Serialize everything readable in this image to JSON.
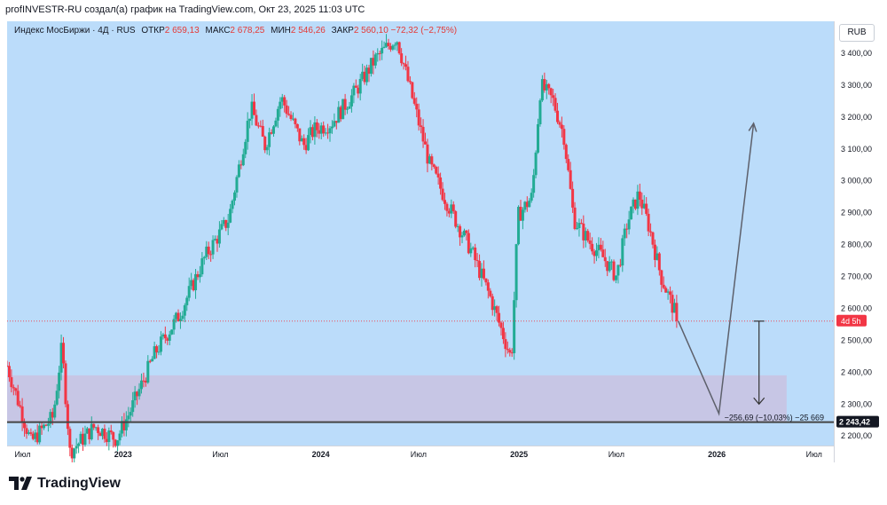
{
  "attribution": "profINVESTR-RU создал(а) график на TradingView.com, Окт 23, 2025 11:03 UTC",
  "legend": {
    "title": "Индекс МосБиржи · 4Д · RUS",
    "open_label": "ОТКР",
    "open": "2 659,13",
    "high_label": "МАКС",
    "high": "2 678,25",
    "low_label": "МИН",
    "low": "2 546,26",
    "close_label": "ЗАКР",
    "close": "2 560,10",
    "change": "−72,32 (−2,75%)"
  },
  "currency_button": "RUB",
  "countdown_label": "4d 5h",
  "support_label": "2 243,42",
  "measure_label": "−256,69 (−10,03%) −25 669",
  "footer_logo": "TradingView",
  "colors": {
    "background": "#bbdcfa",
    "up": "#22ab94",
    "down": "#f23645",
    "zone": "#c9c2e0",
    "support_line": "#444444"
  },
  "chart_data": {
    "type": "candlestick",
    "ylim": [
      2170,
      3500
    ],
    "y_ticks": [
      "2 200,00",
      "2 300,00",
      "2 400,00",
      "2 500,00",
      "2 600,00",
      "2 700,00",
      "2 800,00",
      "2 900,00",
      "3 000,00",
      "3 100,00",
      "3 200,00",
      "3 300,00",
      "3 400,00"
    ],
    "y_tick_values": [
      2200,
      2300,
      2400,
      2500,
      2600,
      2700,
      2800,
      2900,
      3000,
      3100,
      3200,
      3300,
      3400
    ],
    "x_ticks": [
      "Июл",
      "2023",
      "Июл",
      "2024",
      "Июл",
      "2025",
      "Июл",
      "2026",
      "Июл"
    ],
    "x_tick_dates": [
      "2022-07-01",
      "2023-01-01",
      "2023-07-01",
      "2024-01-01",
      "2024-07-01",
      "2025-01-01",
      "2025-07-01",
      "2026-01-01",
      "2026-07-01"
    ],
    "price_anchors": [
      [
        "2022-06-01",
        2420
      ],
      [
        "2022-07-15",
        2180
      ],
      [
        "2022-08-25",
        2260
      ],
      [
        "2022-09-10",
        2480
      ],
      [
        "2022-09-25",
        2150
      ],
      [
        "2022-11-10",
        2230
      ],
      [
        "2022-12-20",
        2190
      ],
      [
        "2023-01-15",
        2280
      ],
      [
        "2023-03-01",
        2460
      ],
      [
        "2023-04-15",
        2580
      ],
      [
        "2023-06-01",
        2760
      ],
      [
        "2023-07-15",
        2880
      ],
      [
        "2023-08-25",
        3230
      ],
      [
        "2023-09-20",
        3110
      ],
      [
        "2023-10-20",
        3260
      ],
      [
        "2023-11-30",
        3110
      ],
      [
        "2023-12-20",
        3160
      ],
      [
        "2024-01-20",
        3180
      ],
      [
        "2024-03-05",
        3280
      ],
      [
        "2024-04-10",
        3380
      ],
      [
        "2024-05-20",
        3450
      ],
      [
        "2024-06-15",
        3280
      ],
      [
        "2024-07-20",
        3050
      ],
      [
        "2024-08-30",
        2900
      ],
      [
        "2024-10-05",
        2780
      ],
      [
        "2024-11-10",
        2630
      ],
      [
        "2024-12-18",
        2440
      ],
      [
        "2024-12-30",
        2890
      ],
      [
        "2025-01-25",
        2950
      ],
      [
        "2025-02-10",
        3300
      ],
      [
        "2025-03-05",
        3250
      ],
      [
        "2025-03-25",
        3140
      ],
      [
        "2025-04-12",
        2880
      ],
      [
        "2025-05-10",
        2810
      ],
      [
        "2025-06-05",
        2760
      ],
      [
        "2025-06-30",
        2700
      ],
      [
        "2025-07-20",
        2870
      ],
      [
        "2025-08-10",
        2960
      ],
      [
        "2025-08-30",
        2850
      ],
      [
        "2025-09-20",
        2700
      ],
      [
        "2025-10-22",
        2560
      ]
    ],
    "last_close": 2560.1,
    "support_level": 2243.42,
    "zone": {
      "from": "2022-05-20",
      "to": "2026-05-10",
      "low": 2243.42,
      "high": 2390
    },
    "projection": [
      [
        "2025-10-22",
        2560
      ],
      [
        "2026-01-05",
        2270
      ],
      [
        "2026-03-10",
        3180
      ]
    ],
    "measure": {
      "date": "2026-03-20",
      "from": 2560,
      "to": 2300
    }
  }
}
